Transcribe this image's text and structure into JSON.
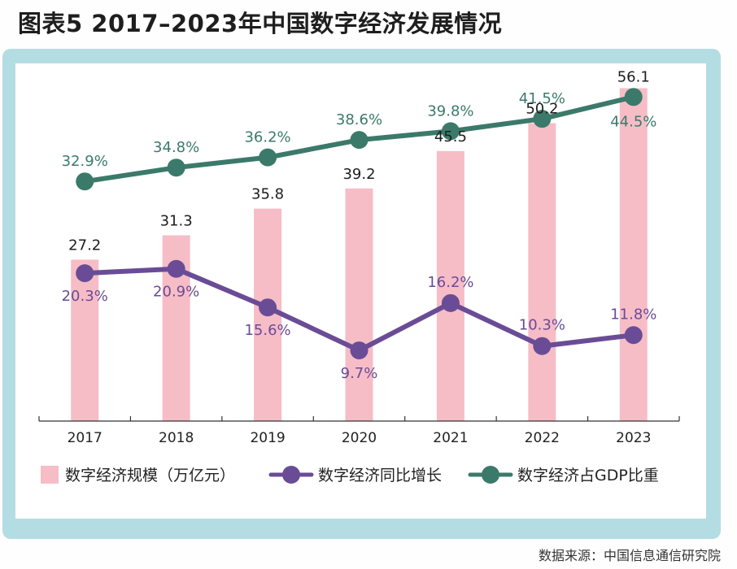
{
  "title": "图表5  2017–2023年中国数字经济发展情况",
  "source": "数据来源：中国信息通信研究院",
  "chart_data": {
    "type": "bar",
    "categories": [
      "2017",
      "2018",
      "2019",
      "2020",
      "2021",
      "2022",
      "2023"
    ],
    "series": [
      {
        "name": "数字经济规模（万亿元）",
        "type": "bar",
        "axis": "left",
        "color": "#f6bdc7",
        "values": [
          27.2,
          31.3,
          35.8,
          39.2,
          45.5,
          50.2,
          56.1
        ],
        "labels": [
          "27.2",
          "31.3",
          "35.8",
          "39.2",
          "45.5",
          "50.2",
          "56.1"
        ]
      },
      {
        "name": "数字经济同比增长",
        "type": "line",
        "axis": "right",
        "color": "#6a4c96",
        "values": [
          20.3,
          20.9,
          15.6,
          9.7,
          16.2,
          10.3,
          11.8
        ],
        "labels": [
          "20.3%",
          "20.9%",
          "15.6%",
          "9.7%",
          "16.2%",
          "10.3%",
          "11.8%"
        ]
      },
      {
        "name": "数字经济占GDP比重",
        "type": "line",
        "axis": "right",
        "color": "#3b7a6a",
        "values": [
          32.9,
          34.8,
          36.2,
          38.6,
          39.8,
          41.5,
          44.5
        ],
        "labels": [
          "32.9%",
          "34.8%",
          "36.2%",
          "38.6%",
          "39.8%",
          "41.5%",
          "44.5%"
        ]
      }
    ],
    "ylim": [
      0,
      60
    ],
    "y2lim": [
      0,
      50
    ],
    "grid": false,
    "legend": "bottom"
  }
}
